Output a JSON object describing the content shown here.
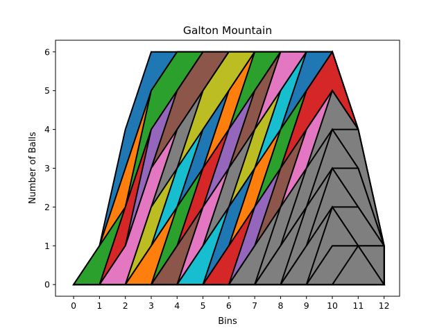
{
  "chart_data": {
    "type": "area",
    "title": "Galton Mountain",
    "xlabel": "Bins",
    "ylabel": "Number of Balls",
    "xlim": [
      -0.7,
      12.6
    ],
    "ylim": [
      -0.3,
      6.3
    ],
    "xticks": [
      "0",
      "1",
      "2",
      "3",
      "4",
      "5",
      "6",
      "7",
      "8",
      "9",
      "10",
      "11",
      "12"
    ],
    "yticks": [
      "0",
      "1",
      "2",
      "3",
      "4",
      "5",
      "6"
    ],
    "grid": false,
    "stacked_curves": [
      {
        "color": "#1f77b4",
        "y": [
          0,
          1,
          4,
          6,
          6,
          6,
          6,
          6,
          6,
          6,
          6,
          4,
          1
        ]
      },
      {
        "color": "#ff7f0e",
        "y": [
          0,
          1,
          3,
          5,
          6,
          6,
          6,
          6,
          6,
          6,
          6,
          4,
          1
        ]
      },
      {
        "color": "#2ca02c",
        "y": [
          0,
          1,
          2,
          5,
          6,
          6,
          6,
          6,
          6,
          6,
          6,
          4,
          1
        ]
      },
      {
        "color": "#d62728",
        "y": [
          0,
          0,
          2,
          4,
          5,
          6,
          6,
          6,
          6,
          6,
          6,
          4,
          1
        ]
      },
      {
        "color": "#9467bd",
        "y": [
          0,
          0,
          1,
          4,
          5,
          6,
          6,
          6,
          6,
          6,
          6,
          4,
          1
        ]
      },
      {
        "color": "#8c564b",
        "y": [
          0,
          0,
          1,
          3,
          5,
          6,
          6,
          6,
          6,
          6,
          6,
          4,
          1
        ]
      },
      {
        "color": "#e377c2",
        "y": [
          0,
          0,
          1,
          3,
          4,
          5,
          6,
          6,
          6,
          6,
          6,
          4,
          1
        ]
      },
      {
        "color": "#7f7f7f",
        "y": [
          0,
          0,
          0,
          2,
          4,
          5,
          6,
          6,
          6,
          6,
          6,
          4,
          1
        ]
      },
      {
        "color": "#bcbd22",
        "y": [
          0,
          0,
          0,
          2,
          3,
          5,
          6,
          6,
          6,
          6,
          6,
          4,
          1
        ]
      },
      {
        "color": "#17becf",
        "y": [
          0,
          0,
          0,
          1,
          3,
          4,
          5,
          6,
          6,
          6,
          6,
          4,
          1
        ]
      },
      {
        "color": "#1f77b4",
        "y": [
          0,
          0,
          0,
          1,
          2,
          4,
          5,
          6,
          6,
          6,
          6,
          4,
          1
        ]
      },
      {
        "color": "#ff7f0e",
        "y": [
          0,
          0,
          0,
          1,
          2,
          3,
          5,
          6,
          6,
          6,
          6,
          4,
          1
        ]
      },
      {
        "color": "#2ca02c",
        "y": [
          0,
          0,
          0,
          0,
          2,
          3,
          4,
          6,
          6,
          6,
          6,
          4,
          1
        ]
      },
      {
        "color": "#d62728",
        "y": [
          0,
          0,
          0,
          0,
          1,
          3,
          4,
          5,
          6,
          6,
          6,
          4,
          1
        ]
      },
      {
        "color": "#9467bd",
        "y": [
          0,
          0,
          0,
          0,
          1,
          2,
          4,
          5,
          6,
          6,
          6,
          4,
          1
        ]
      },
      {
        "color": "#8c564b",
        "y": [
          0,
          0,
          0,
          0,
          1,
          2,
          3,
          5,
          6,
          6,
          6,
          4,
          1
        ]
      },
      {
        "color": "#e377c2",
        "y": [
          0,
          0,
          0,
          0,
          0,
          2,
          3,
          4,
          6,
          6,
          6,
          4,
          1
        ]
      },
      {
        "color": "#7f7f7f",
        "y": [
          0,
          0,
          0,
          0,
          0,
          1,
          3,
          4,
          5,
          6,
          6,
          4,
          1
        ]
      },
      {
        "color": "#bcbd22",
        "y": [
          0,
          0,
          0,
          0,
          0,
          1,
          2,
          4,
          5,
          6,
          6,
          4,
          1
        ]
      },
      {
        "color": "#17becf",
        "y": [
          0,
          0,
          0,
          0,
          0,
          1,
          2,
          3,
          5,
          6,
          6,
          4,
          1
        ]
      },
      {
        "color": "#1f77b4",
        "y": [
          0,
          0,
          0,
          0,
          0,
          0,
          2,
          3,
          4,
          6,
          6,
          4,
          1
        ]
      },
      {
        "color": "#ff7f0e",
        "y": [
          0,
          0,
          0,
          0,
          0,
          0,
          1,
          3,
          4,
          5,
          6,
          4,
          1
        ]
      },
      {
        "color": "#2ca02c",
        "y": [
          0,
          0,
          0,
          0,
          0,
          0,
          1,
          2,
          4,
          5,
          6,
          4,
          1
        ]
      },
      {
        "color": "#d62728",
        "y": [
          0,
          0,
          0,
          0,
          0,
          0,
          1,
          2,
          3,
          5,
          6,
          4,
          1
        ]
      },
      {
        "color": "#9467bd",
        "y": [
          0,
          0,
          0,
          0,
          0,
          0,
          0,
          2,
          3,
          4,
          5,
          4,
          1
        ]
      },
      {
        "color": "#8c564b",
        "y": [
          0,
          0,
          0,
          0,
          0,
          0,
          0,
          1,
          3,
          4,
          5,
          4,
          1
        ]
      },
      {
        "color": "#e377c2",
        "y": [
          0,
          0,
          0,
          0,
          0,
          0,
          0,
          1,
          2,
          4,
          5,
          4,
          1
        ]
      },
      {
        "color": "#7f7f7f",
        "y": [
          0,
          0,
          0,
          0,
          0,
          0,
          0,
          1,
          2,
          3,
          5,
          4,
          1
        ]
      },
      {
        "color": "#7f7f7f",
        "y": [
          0,
          0,
          0,
          0,
          0,
          0,
          0,
          0,
          2,
          3,
          4,
          4,
          1
        ]
      },
      {
        "color": "#7f7f7f",
        "y": [
          0,
          0,
          0,
          0,
          0,
          0,
          0,
          0,
          1,
          3,
          4,
          3,
          1
        ]
      },
      {
        "color": "#7f7f7f",
        "y": [
          0,
          0,
          0,
          0,
          0,
          0,
          0,
          0,
          1,
          2,
          4,
          3,
          1
        ]
      },
      {
        "color": "#7f7f7f",
        "y": [
          0,
          0,
          0,
          0,
          0,
          0,
          0,
          0,
          1,
          2,
          3,
          3,
          1
        ]
      },
      {
        "color": "#7f7f7f",
        "y": [
          0,
          0,
          0,
          0,
          0,
          0,
          0,
          0,
          0,
          2,
          3,
          2,
          1
        ]
      },
      {
        "color": "#7f7f7f",
        "y": [
          0,
          0,
          0,
          0,
          0,
          0,
          0,
          0,
          0,
          1,
          3,
          2,
          1
        ]
      },
      {
        "color": "#7f7f7f",
        "y": [
          0,
          0,
          0,
          0,
          0,
          0,
          0,
          0,
          0,
          1,
          2,
          2,
          1
        ]
      },
      {
        "color": "#7f7f7f",
        "y": [
          0,
          0,
          0,
          0,
          0,
          0,
          0,
          0,
          0,
          1,
          2,
          1,
          1
        ]
      },
      {
        "color": "#7f7f7f",
        "y": [
          0,
          0,
          0,
          0,
          0,
          0,
          0,
          0,
          0,
          0,
          2,
          1,
          1
        ]
      },
      {
        "color": "#7f7f7f",
        "y": [
          0,
          0,
          0,
          0,
          0,
          0,
          0,
          0,
          0,
          0,
          1,
          1,
          1
        ]
      },
      {
        "color": "#7f7f7f",
        "y": [
          0,
          0,
          0,
          0,
          0,
          0,
          0,
          0,
          0,
          0,
          1,
          1,
          0
        ]
      },
      {
        "color": "#7f7f7f",
        "y": [
          0,
          0,
          0,
          0,
          0,
          0,
          0,
          0,
          0,
          0,
          0,
          1,
          0
        ]
      }
    ]
  }
}
